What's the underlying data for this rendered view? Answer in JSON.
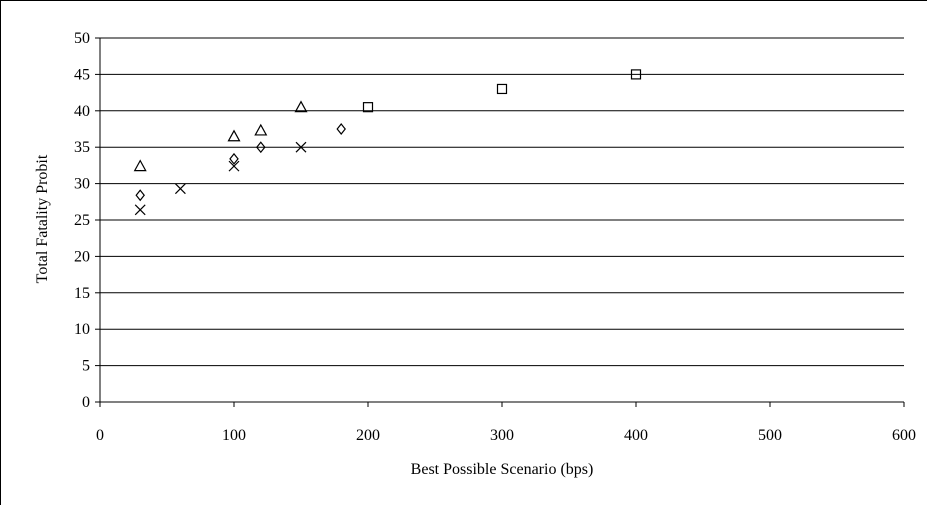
{
  "chart_data": {
    "type": "scatter",
    "title": "",
    "xlabel": "Best Possible Scenario (bps)",
    "ylabel": "Total Fatality Probit",
    "xlim": [
      0,
      600
    ],
    "ylim": [
      0,
      50
    ],
    "x_ticks": [
      "0",
      "100",
      "200",
      "300",
      "400",
      "500",
      "600"
    ],
    "y_ticks": [
      "0",
      "5",
      "10",
      "15",
      "20",
      "25",
      "30",
      "35",
      "40",
      "45",
      "50"
    ],
    "grid": "horizontal",
    "legend": "none",
    "series": [
      {
        "marker": "triangle",
        "points": [
          [
            30,
            32.4
          ],
          [
            100,
            36.5
          ],
          [
            120,
            37.3
          ],
          [
            150,
            40.5
          ]
        ]
      },
      {
        "marker": "diamond",
        "points": [
          [
            30,
            28.4
          ],
          [
            100,
            33.4
          ],
          [
            120,
            35.0
          ],
          [
            180,
            37.5
          ]
        ]
      },
      {
        "marker": "x",
        "points": [
          [
            30,
            26.4
          ],
          [
            60,
            29.3
          ],
          [
            100,
            32.4
          ],
          [
            150,
            35.0
          ]
        ]
      },
      {
        "marker": "square",
        "points": [
          [
            200,
            40.5
          ],
          [
            300,
            43.0
          ],
          [
            400,
            45.0
          ]
        ]
      }
    ]
  }
}
